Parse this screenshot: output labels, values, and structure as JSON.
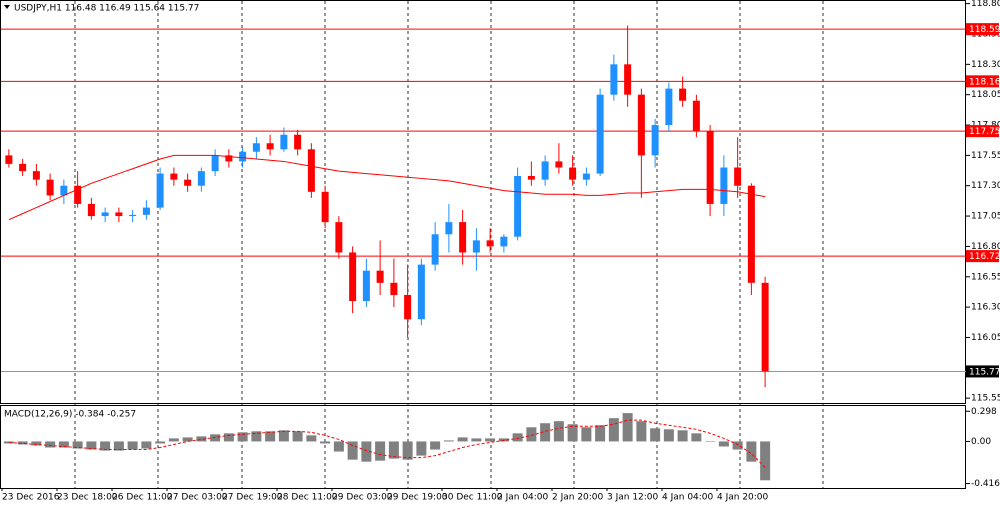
{
  "chart_data": {
    "type": "candlestick",
    "header": "USDJPY,H1  116.48 116.49 115.64 115.77",
    "up_color": "#1e90ff",
    "down_color": "#ff0000",
    "categories": [
      "23 Dec 2016",
      null,
      null,
      null,
      "23 Dec 18:00",
      null,
      null,
      null,
      "26 Dec 11:00",
      null,
      null,
      null,
      "27 Dec 03:00",
      null,
      null,
      null,
      "27 Dec 19:00",
      null,
      null,
      null,
      "28 Dec 11:00",
      null,
      null,
      null,
      "29 Dec 03:00",
      null,
      null,
      null,
      "29 Dec 19:00",
      null,
      null,
      null,
      "30 Dec 11:00",
      null,
      null,
      null,
      "2 Jan 04:00",
      null,
      null,
      null,
      "2 Jan 20:00",
      null,
      null,
      null,
      "3 Jan 12:00",
      null,
      null,
      null,
      "4 Jan 04:00",
      null,
      null,
      null,
      "4 Jan 20:00",
      null,
      null,
      null
    ],
    "candles": [
      [
        117.55,
        117.6,
        117.45,
        117.48
      ],
      [
        117.48,
        117.52,
        117.38,
        117.42
      ],
      [
        117.42,
        117.48,
        117.3,
        117.35
      ],
      [
        117.35,
        117.4,
        117.18,
        117.22
      ],
      [
        117.22,
        117.35,
        117.15,
        117.3
      ],
      [
        117.3,
        117.42,
        117.12,
        117.15
      ],
      [
        117.15,
        117.2,
        117.02,
        117.05
      ],
      [
        117.05,
        117.12,
        117.0,
        117.08
      ],
      [
        117.08,
        117.12,
        117.0,
        117.05
      ],
      [
        117.05,
        117.1,
        117.0,
        117.06
      ],
      [
        117.06,
        117.18,
        117.02,
        117.12
      ],
      [
        117.12,
        117.45,
        117.1,
        117.4
      ],
      [
        117.4,
        117.45,
        117.3,
        117.35
      ],
      [
        117.35,
        117.4,
        117.25,
        117.3
      ],
      [
        117.3,
        117.45,
        117.25,
        117.42
      ],
      [
        117.42,
        117.6,
        117.38,
        117.55
      ],
      [
        117.55,
        117.6,
        117.45,
        117.5
      ],
      [
        117.5,
        117.62,
        117.45,
        117.58
      ],
      [
        117.58,
        117.7,
        117.52,
        117.65
      ],
      [
        117.65,
        117.72,
        117.55,
        117.6
      ],
      [
        117.6,
        117.78,
        117.58,
        117.72
      ],
      [
        117.72,
        117.76,
        117.55,
        117.6
      ],
      [
        117.6,
        117.65,
        117.2,
        117.25
      ],
      [
        117.25,
        117.3,
        116.95,
        117.0
      ],
      [
        117.0,
        117.05,
        116.7,
        116.75
      ],
      [
        116.75,
        116.8,
        116.25,
        116.35
      ],
      [
        116.35,
        116.7,
        116.3,
        116.6
      ],
      [
        116.6,
        116.85,
        116.4,
        116.5
      ],
      [
        116.5,
        116.7,
        116.3,
        116.4
      ],
      [
        116.4,
        116.65,
        116.05,
        116.2
      ],
      [
        116.2,
        116.7,
        116.15,
        116.65
      ],
      [
        116.65,
        117.0,
        116.6,
        116.9
      ],
      [
        116.9,
        117.15,
        116.75,
        117.0
      ],
      [
        117.0,
        117.1,
        116.65,
        116.75
      ],
      [
        116.75,
        116.95,
        116.6,
        116.85
      ],
      [
        116.85,
        116.95,
        116.75,
        116.8
      ],
      [
        116.8,
        116.9,
        116.75,
        116.88
      ],
      [
        116.88,
        117.45,
        116.85,
        117.38
      ],
      [
        117.38,
        117.5,
        117.3,
        117.35
      ],
      [
        117.35,
        117.55,
        117.3,
        117.5
      ],
      [
        117.5,
        117.65,
        117.4,
        117.45
      ],
      [
        117.45,
        117.55,
        117.3,
        117.35
      ],
      [
        117.35,
        117.45,
        117.3,
        117.4
      ],
      [
        117.4,
        118.1,
        117.38,
        118.05
      ],
      [
        118.05,
        118.38,
        118.0,
        118.3
      ],
      [
        118.3,
        118.62,
        117.95,
        118.05
      ],
      [
        118.05,
        118.1,
        117.2,
        117.55
      ],
      [
        117.55,
        117.85,
        117.45,
        117.8
      ],
      [
        117.8,
        118.15,
        117.75,
        118.1
      ],
      [
        118.1,
        118.2,
        117.95,
        118.0
      ],
      [
        118.0,
        118.05,
        117.7,
        117.75
      ],
      [
        117.75,
        117.8,
        117.05,
        117.15
      ],
      [
        117.15,
        117.55,
        117.05,
        117.45
      ],
      [
        117.45,
        117.7,
        117.2,
        117.3
      ],
      [
        117.3,
        117.32,
        116.4,
        116.5
      ],
      [
        116.5,
        116.55,
        115.64,
        115.77
      ]
    ],
    "ma": {
      "color": "#ff0000",
      "values": [
        117.02,
        117.07,
        117.12,
        117.17,
        117.22,
        117.27,
        117.32,
        117.36,
        117.4,
        117.44,
        117.48,
        117.52,
        117.55,
        117.55,
        117.55,
        117.55,
        117.54,
        117.53,
        117.52,
        117.51,
        117.5,
        117.48,
        117.46,
        117.44,
        117.42,
        117.41,
        117.4,
        117.39,
        117.38,
        117.37,
        117.36,
        117.35,
        117.34,
        117.32,
        117.3,
        117.28,
        117.26,
        117.25,
        117.24,
        117.23,
        117.23,
        117.23,
        117.22,
        117.22,
        117.23,
        117.24,
        117.24,
        117.25,
        117.26,
        117.27,
        117.27,
        117.27,
        117.26,
        117.25,
        117.23,
        117.21
      ]
    },
    "ylim": [
      115.51,
      118.83
    ],
    "yticks": [
      {
        "value": 118.8,
        "label": "118.80"
      },
      118.55,
      {
        "value": 118.3,
        "label": "118.30"
      },
      118.05,
      {
        "value": 117.8,
        "label": "117.80"
      },
      117.55,
      {
        "value": 117.3,
        "label": "117.30"
      },
      117.05,
      {
        "value": 116.8,
        "label": "116.80"
      },
      116.55,
      {
        "value": 116.3,
        "label": "116.30"
      },
      116.05,
      115.55
    ],
    "levels": [
      {
        "value": 118.59,
        "color": "#ff0000"
      },
      {
        "value": 118.16,
        "color": "#ff0000"
      },
      {
        "value": 117.75,
        "color": "#ff0000"
      },
      {
        "value": 116.72,
        "color": "#ff0000"
      }
    ],
    "current": {
      "value": 115.77,
      "color": "#8899aa"
    },
    "macd": {
      "title": "MACD(12,26,9) -0.384 -0.257",
      "color": "#808080",
      "signal_color": "#ff0000",
      "ylim": [
        -0.46,
        0.36
      ],
      "yticks": [
        0.298,
        {
          "value": 0,
          "label": "0.00"
        },
        -0.416
      ],
      "histogram": [
        -0.02,
        -0.03,
        -0.04,
        -0.06,
        -0.06,
        -0.07,
        -0.08,
        -0.09,
        -0.09,
        -0.08,
        -0.07,
        -0.02,
        0.03,
        0.04,
        0.05,
        0.07,
        0.08,
        0.09,
        0.1,
        0.1,
        0.11,
        0.1,
        0.06,
        -0.02,
        -0.1,
        -0.18,
        -0.2,
        -0.19,
        -0.17,
        -0.18,
        -0.14,
        -0.08,
        0.01,
        0.04,
        0.03,
        0.03,
        0.03,
        0.08,
        0.14,
        0.18,
        0.2,
        0.17,
        0.14,
        0.16,
        0.23,
        0.28,
        0.2,
        0.13,
        0.12,
        0.11,
        0.08,
        0.0,
        -0.05,
        -0.08,
        -0.2,
        -0.384
      ],
      "signal": [
        -0.01,
        -0.02,
        -0.03,
        -0.04,
        -0.05,
        -0.06,
        -0.07,
        -0.08,
        -0.08,
        -0.08,
        -0.08,
        -0.06,
        -0.03,
        0.0,
        0.02,
        0.04,
        0.06,
        0.07,
        0.08,
        0.09,
        0.1,
        0.1,
        0.09,
        0.06,
        0.02,
        -0.04,
        -0.09,
        -0.13,
        -0.15,
        -0.16,
        -0.16,
        -0.14,
        -0.1,
        -0.06,
        -0.03,
        -0.01,
        0.01,
        0.03,
        0.06,
        0.1,
        0.13,
        0.15,
        0.15,
        0.15,
        0.17,
        0.21,
        0.21,
        0.18,
        0.16,
        0.14,
        0.12,
        0.08,
        0.03,
        -0.03,
        -0.12,
        -0.257
      ]
    }
  }
}
